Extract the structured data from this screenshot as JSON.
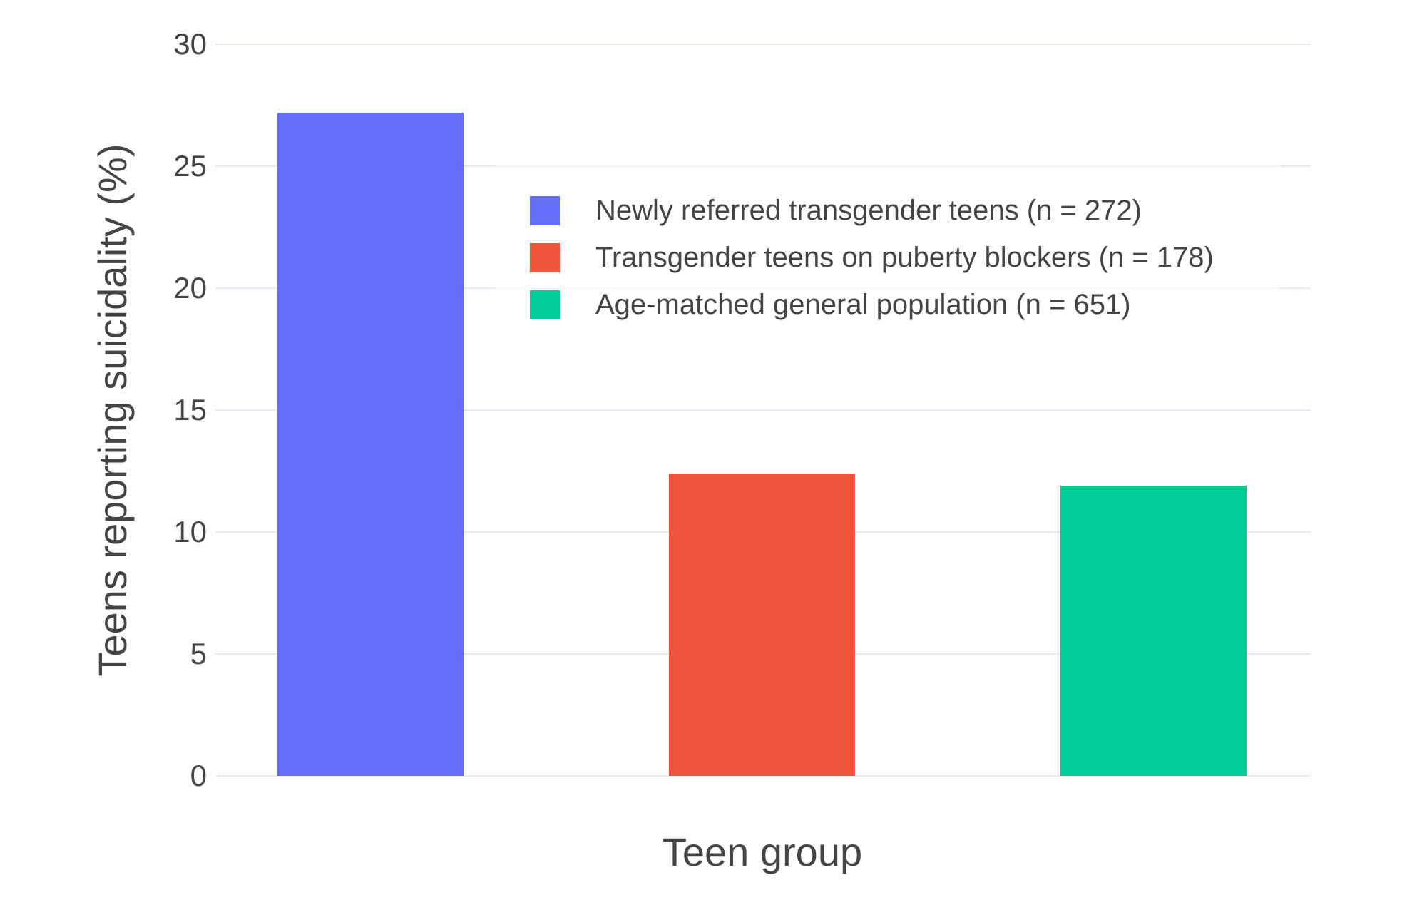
{
  "chart_data": {
    "type": "bar",
    "title": "",
    "xlabel": "Teen group",
    "ylabel": "Teens reporting suicidality (%)",
    "categories": [
      "Newly referred transgender teens (n = 272)",
      "Transgender teens on puberty blockers (n = 178)",
      "Age-matched general population (n = 651)"
    ],
    "values": [
      27.2,
      12.4,
      11.9
    ],
    "bar_colors": [
      "#636EFA",
      "#EF553B",
      "#00CC96"
    ],
    "ylim": [
      0,
      30
    ],
    "yticks": [
      0,
      5,
      10,
      15,
      20,
      25,
      30
    ],
    "x_tick_labels": [],
    "grid": true,
    "legend_position": "inside top-center",
    "legend_entries": [
      {
        "label": "Newly referred transgender teens (n = 272)",
        "color": "#636EFA"
      },
      {
        "label": "Transgender teens on puberty blockers (n = 178)",
        "color": "#EF553B"
      },
      {
        "label": "Age-matched general population (n = 651)",
        "color": "#00CC96"
      }
    ]
  },
  "colors": {
    "background": "#FFFFFF",
    "grid": "#E5EBF5",
    "zero_line": "#E5EBF5",
    "text": "#444444"
  }
}
